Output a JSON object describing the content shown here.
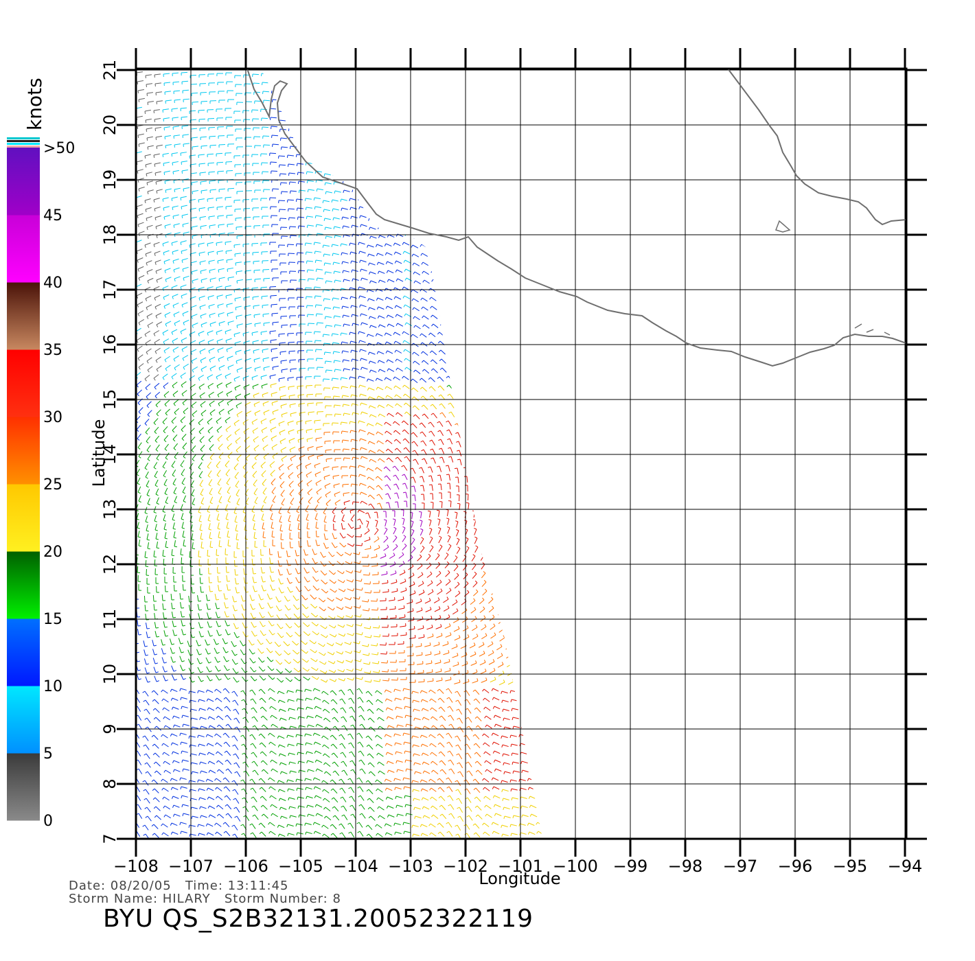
{
  "map": {
    "lon_ticks": [
      "−108",
      "−107",
      "−106",
      "−105",
      "−104",
      "−103",
      "−102",
      "−101",
      "−100",
      "−99",
      "−98",
      "−97",
      "−96",
      "−95",
      "−94"
    ],
    "lat_ticks": [
      "7",
      "8",
      "9",
      "10",
      "11",
      "12",
      "13",
      "14",
      "15",
      "16",
      "17",
      "18",
      "19",
      "20",
      "21"
    ],
    "lon_range": [
      -108,
      -94
    ],
    "lat_range": [
      7,
      21
    ],
    "xlabel": "Longitude",
    "ylabel": "Latitude",
    "coastline_color": "#6e6e6e"
  },
  "colorbar": {
    "unit": "knots",
    "labels": [
      ">50",
      "45",
      "40",
      "35",
      "30",
      "25",
      "20",
      "15",
      "10",
      "5",
      "0"
    ],
    "bands": [
      {
        "from": 0,
        "to": 5,
        "top": "#3a3a3a",
        "bottom": "#8a8a8a"
      },
      {
        "from": 5,
        "to": 10,
        "top": "#00e8ff",
        "bottom": "#0090ff"
      },
      {
        "from": 10,
        "to": 15,
        "top": "#0070ff",
        "bottom": "#0018ff"
      },
      {
        "from": 15,
        "to": 20,
        "top": "#005f00",
        "bottom": "#00f000"
      },
      {
        "from": 20,
        "to": 25,
        "top": "#ffc800",
        "bottom": "#fff020"
      },
      {
        "from": 25,
        "to": 30,
        "top": "#ff3000",
        "bottom": "#ff9000"
      },
      {
        "from": 30,
        "to": 35,
        "top": "#ff0000",
        "bottom": "#ff3010"
      },
      {
        "from": 35,
        "to": 40,
        "top": "#4a1208",
        "bottom": "#c88860"
      },
      {
        "from": 40,
        "to": 45,
        "top": "#c800d8",
        "bottom": "#ff00ff"
      },
      {
        "from": 45,
        "to": 50,
        "top": "#6010c0",
        "bottom": "#a000c8"
      }
    ]
  },
  "footer": {
    "date_line": "Date: 08/20/05   Time: 13:11:45",
    "storm_line": "Storm Name: HILARY   Storm Number: 8",
    "title": "BYU QS_S2B32131.20052322119"
  }
}
